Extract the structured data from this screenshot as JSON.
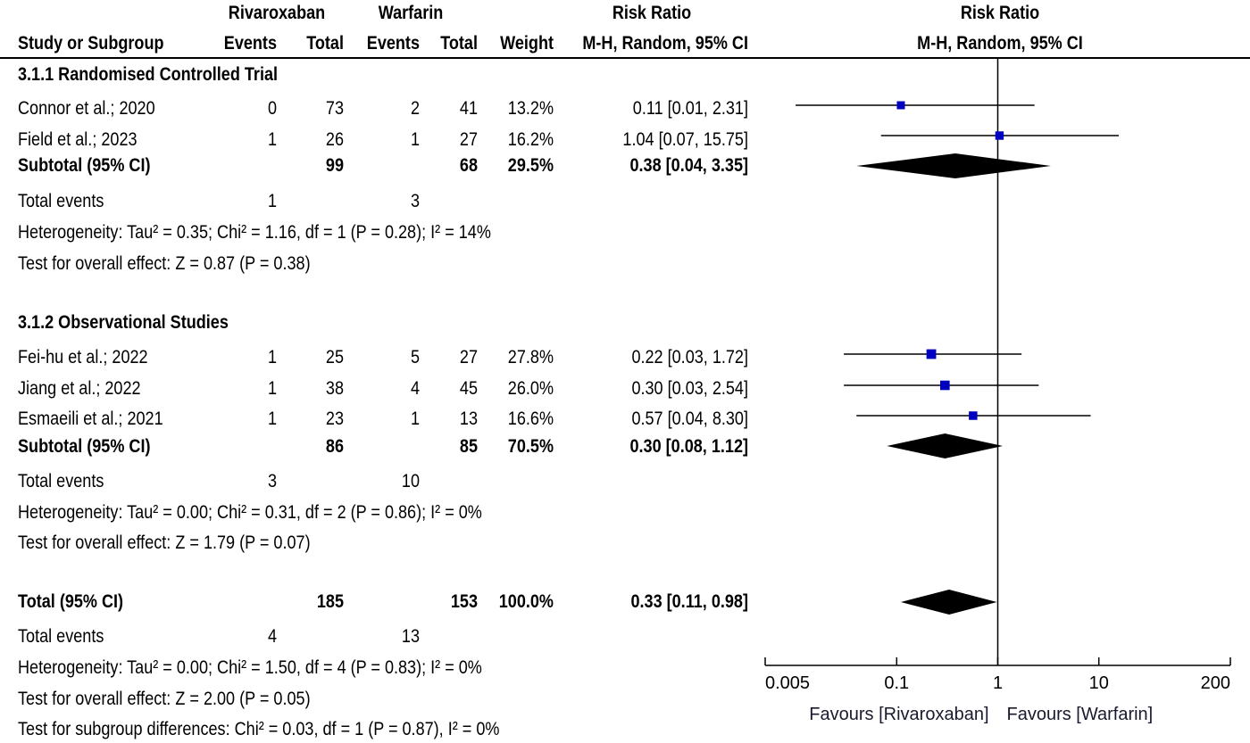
{
  "header": {
    "group1": "Rivaroxaban",
    "group2": "Warfarin",
    "rr_title": "Risk Ratio",
    "plot_title": "Risk Ratio",
    "col_study": "Study or Subgroup",
    "col_events1": "Events",
    "col_total1": "Total",
    "col_events2": "Events",
    "col_total2": "Total",
    "col_weight": "Weight",
    "col_rr": "M-H, Random, 95% CI",
    "plot_subtitle": "M-H, Random, 95% CI"
  },
  "subgroups": [
    {
      "title": "3.1.1 Randomised Controlled Trial",
      "studies": [
        {
          "name": "Connor et al.; 2020",
          "e1": "0",
          "t1": "73",
          "e2": "2",
          "t2": "41",
          "weight": "13.2%",
          "ci_text": "0.11 [0.01, 2.31]"
        },
        {
          "name": "Field et al.; 2023",
          "e1": "1",
          "t1": "26",
          "e2": "1",
          "t2": "27",
          "weight": "16.2%",
          "ci_text": "1.04 [0.07, 15.75]"
        }
      ],
      "subtotal": {
        "label": "Subtotal (95% CI)",
        "t1": "99",
        "t2": "68",
        "weight": "29.5%",
        "ci_text": "0.38 [0.04, 3.35]"
      },
      "events": {
        "label": "Total events",
        "e1": "1",
        "e2": "3"
      },
      "heterogeneity": "Heterogeneity: Tau² = 0.35; Chi² = 1.16, df = 1 (P = 0.28); I² = 14%",
      "overall": "Test for overall effect: Z = 0.87 (P = 0.38)"
    },
    {
      "title": "3.1.2 Observational Studies",
      "studies": [
        {
          "name": "Fei-hu et al.; 2022",
          "e1": "1",
          "t1": "25",
          "e2": "5",
          "t2": "27",
          "weight": "27.8%",
          "ci_text": "0.22 [0.03, 1.72]"
        },
        {
          "name": "Jiang et al.; 2022",
          "e1": "1",
          "t1": "38",
          "e2": "4",
          "t2": "45",
          "weight": "26.0%",
          "ci_text": "0.30 [0.03, 2.54]"
        },
        {
          "name": "Esmaeili et al.; 2021",
          "e1": "1",
          "t1": "23",
          "e2": "1",
          "t2": "13",
          "weight": "16.6%",
          "ci_text": "0.57 [0.04, 8.30]"
        }
      ],
      "subtotal": {
        "label": "Subtotal (95% CI)",
        "t1": "86",
        "t2": "85",
        "weight": "70.5%",
        "ci_text": "0.30 [0.08, 1.12]"
      },
      "events": {
        "label": "Total events",
        "e1": "3",
        "e2": "10"
      },
      "heterogeneity": "Heterogeneity: Tau² = 0.00; Chi² = 0.31, df = 2 (P = 0.86); I² = 0%",
      "overall": "Test for overall effect: Z = 1.79 (P = 0.07)"
    }
  ],
  "total": {
    "label": "Total (95% CI)",
    "t1": "185",
    "t2": "153",
    "weight": "100.0%",
    "ci_text": "0.33 [0.11, 0.98]",
    "events": {
      "label": "Total events",
      "e1": "4",
      "e2": "13"
    },
    "heterogeneity": "Heterogeneity: Tau² = 0.00; Chi² = 1.50, df = 4 (P = 0.83); I² = 0%",
    "overall": "Test for overall effect: Z = 2.00 (P = 0.05)",
    "subgroup_diff": "Test for subgroup differences: Chi² = 0.03, df = 1 (P = 0.87), I² = 0%"
  },
  "chart_data": {
    "type": "forest",
    "x_scale": "log",
    "xlim": [
      0.005,
      200
    ],
    "ticks": [
      0.005,
      0.1,
      1,
      10,
      200
    ],
    "tick_labels": [
      "0.005",
      "0.1",
      "1",
      "10",
      "200"
    ],
    "null_line": 1,
    "favours_left": "Favours [Rivaroxaban]",
    "favours_right": "Favours [Warfarin]",
    "study_color": "#0000c0",
    "diamond_color": "#000000",
    "studies": [
      {
        "name": "Connor et al.; 2020",
        "rr": 0.11,
        "lo": 0.01,
        "hi": 2.31,
        "weight": 13.2
      },
      {
        "name": "Field et al.; 2023",
        "rr": 1.04,
        "lo": 0.07,
        "hi": 15.75,
        "weight": 16.2
      },
      {
        "name": "Fei-hu et al.; 2022",
        "rr": 0.22,
        "lo": 0.03,
        "hi": 1.72,
        "weight": 27.8
      },
      {
        "name": "Jiang et al.; 2022",
        "rr": 0.3,
        "lo": 0.03,
        "hi": 2.54,
        "weight": 26.0
      },
      {
        "name": "Esmaeili et al.; 2021",
        "rr": 0.57,
        "lo": 0.04,
        "hi": 8.3,
        "weight": 16.6
      }
    ],
    "diamonds": [
      {
        "name": "Subtotal 3.1.1",
        "rr": 0.38,
        "lo": 0.04,
        "hi": 3.35
      },
      {
        "name": "Subtotal 3.1.2",
        "rr": 0.3,
        "lo": 0.08,
        "hi": 1.12
      },
      {
        "name": "Total",
        "rr": 0.33,
        "lo": 0.11,
        "hi": 0.98
      }
    ]
  }
}
